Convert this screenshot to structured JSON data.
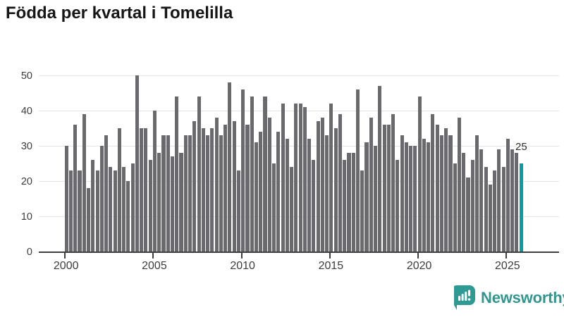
{
  "title": "Födda per kvartal i Tomelilla",
  "chart_data": {
    "type": "bar",
    "title": "Födda per kvartal i Tomelilla",
    "unit": "births per quarter",
    "x_tick_labels": [
      "2000",
      "2005",
      "2010",
      "2015",
      "2020",
      "2025"
    ],
    "y_tick_labels": [
      0,
      10,
      20,
      30,
      40,
      50
    ],
    "ylim": [
      0,
      50
    ],
    "grid": "horizontal",
    "legend": "none",
    "bar_color": "#6a6a6e",
    "highlight_color": "#0b9c9d",
    "highlight": "last bar (latest quarter) shown in teal with data label",
    "last_value_label": "25",
    "series": [
      {
        "year": 2000,
        "values": [
          30,
          23,
          36,
          23
        ]
      },
      {
        "year": 2001,
        "values": [
          39,
          18,
          26,
          23
        ]
      },
      {
        "year": 2002,
        "values": [
          30,
          33,
          24,
          23
        ]
      },
      {
        "year": 2003,
        "values": [
          35,
          24,
          20,
          25
        ]
      },
      {
        "year": 2004,
        "values": [
          50,
          35,
          35,
          26
        ]
      },
      {
        "year": 2005,
        "values": [
          40,
          28,
          33,
          33
        ]
      },
      {
        "year": 2006,
        "values": [
          27,
          44,
          28,
          33
        ]
      },
      {
        "year": 2007,
        "values": [
          33,
          37,
          44,
          35
        ]
      },
      {
        "year": 2008,
        "values": [
          33,
          35,
          38,
          33
        ]
      },
      {
        "year": 2009,
        "values": [
          36,
          48,
          37,
          23
        ]
      },
      {
        "year": 2010,
        "values": [
          46,
          36,
          44,
          31
        ]
      },
      {
        "year": 2011,
        "values": [
          34,
          44,
          38,
          25
        ]
      },
      {
        "year": 2012,
        "values": [
          34,
          42,
          32,
          24
        ]
      },
      {
        "year": 2013,
        "values": [
          42,
          42,
          41,
          32
        ]
      },
      {
        "year": 2014,
        "values": [
          26,
          37,
          38,
          33
        ]
      },
      {
        "year": 2015,
        "values": [
          42,
          35,
          39,
          26
        ]
      },
      {
        "year": 2016,
        "values": [
          28,
          28,
          46,
          23
        ]
      },
      {
        "year": 2017,
        "values": [
          31,
          38,
          30,
          47
        ]
      },
      {
        "year": 2018,
        "values": [
          36,
          36,
          39,
          26
        ]
      },
      {
        "year": 2019,
        "values": [
          33,
          31,
          30,
          30
        ]
      },
      {
        "year": 2020,
        "values": [
          44,
          32,
          31,
          39
        ]
      },
      {
        "year": 2021,
        "values": [
          36,
          33,
          35,
          33
        ]
      },
      {
        "year": 2022,
        "values": [
          25,
          38,
          28,
          21
        ]
      },
      {
        "year": 2023,
        "values": [
          26,
          33,
          29,
          24
        ]
      },
      {
        "year": 2024,
        "values": [
          19,
          23,
          29,
          24
        ]
      },
      {
        "year": 2025,
        "values": [
          32,
          29,
          28,
          25
        ]
      }
    ]
  },
  "footer": {
    "brand": "Newsworthy",
    "brand_color": "#31968F",
    "icon": "newsworthy-logo-icon"
  }
}
